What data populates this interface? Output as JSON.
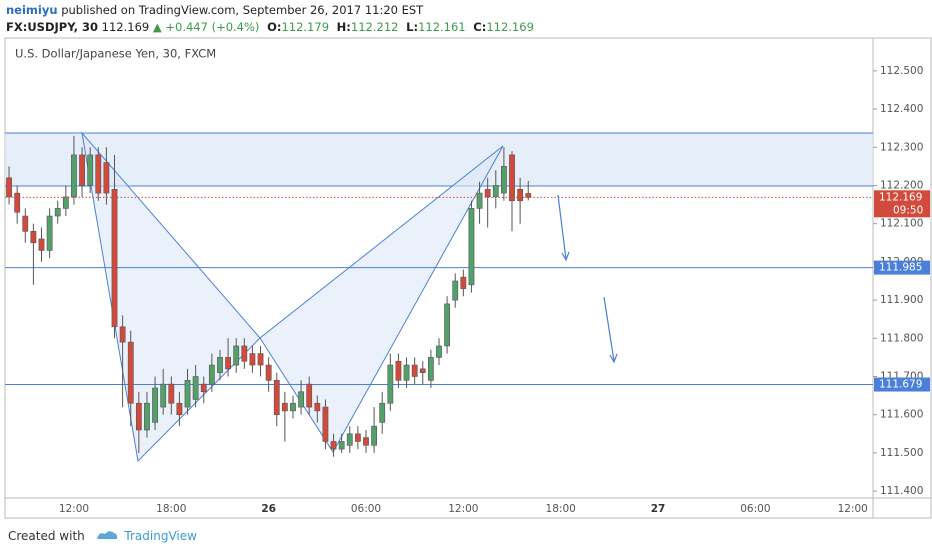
{
  "header": {
    "author": "neimiyu",
    "published": "published on TradingView.com, September 26, 2017 11:20 EST",
    "symbol": "FX:USDJPY, 30",
    "change": "+0.447 (+0.4%)",
    "ohlc_labels": [
      "O:",
      "H:",
      "L:",
      "C:"
    ]
  },
  "footer": {
    "created": "Created with",
    "brand": "TradingView"
  },
  "chart_data": {
    "type": "candlestick",
    "title": "U.S. Dollar/Japanese Yen, 30, FXCM",
    "categories": [
      null,
      null,
      null,
      null,
      null,
      null,
      null,
      null,
      "12:00",
      null,
      null,
      null,
      null,
      null,
      null,
      null,
      null,
      null,
      null,
      null,
      "18:00",
      null,
      null,
      null,
      null,
      null,
      null,
      null,
      null,
      null,
      null,
      null,
      "26",
      null,
      null,
      null,
      null,
      null,
      null,
      null,
      null,
      null,
      null,
      null,
      "06:00",
      null,
      null,
      null,
      null,
      null,
      null,
      null,
      null,
      null,
      null,
      null,
      "12:00",
      null,
      null,
      null,
      null,
      null,
      null,
      null,
      null,
      null,
      null,
      null,
      "18:00",
      null,
      null,
      null,
      null,
      null,
      null,
      null,
      null,
      null,
      null,
      null,
      "27",
      null,
      null,
      null,
      null,
      null,
      null,
      null,
      null,
      null,
      null,
      null,
      "06:00",
      null,
      null,
      null,
      null,
      null,
      null,
      null,
      null,
      null,
      null,
      null,
      "12:00",
      null,
      null
    ],
    "open": [
      112.22,
      112.18,
      112.12,
      112.08,
      112.06,
      112.03,
      112.12,
      112.14,
      112.17,
      112.28,
      112.2,
      112.28,
      112.26,
      112.19,
      111.83,
      111.79,
      111.63,
      111.56,
      111.58,
      111.62,
      111.68,
      111.63,
      111.62,
      111.64,
      111.68,
      111.68,
      111.71,
      111.75,
      111.73,
      111.78,
      111.76,
      111.76,
      111.73,
      111.69,
      111.63,
      111.61,
      111.62,
      111.68,
      111.63,
      111.62,
      111.53,
      111.51,
      111.52,
      111.55,
      111.54,
      111.52,
      111.58,
      111.63,
      111.74,
      111.69,
      111.73,
      111.72,
      111.69,
      111.75,
      111.78,
      111.9,
      111.96,
      111.94,
      112.14,
      112.19,
      112.17,
      112.18,
      112.28,
      112.19,
      112.179,
      null,
      null,
      null,
      null,
      null,
      null,
      null,
      null,
      null,
      null,
      null,
      null,
      null,
      null,
      null,
      null,
      null,
      null,
      null,
      null,
      null,
      null,
      null,
      null,
      null,
      null,
      null,
      null,
      null,
      null,
      null,
      null,
      null,
      null,
      null,
      null,
      null,
      null,
      null,
      null,
      null,
      null
    ],
    "high": [
      112.25,
      112.2,
      112.14,
      112.1,
      112.09,
      112.14,
      112.16,
      112.2,
      112.33,
      112.3,
      112.3,
      112.3,
      112.3,
      112.28,
      111.86,
      111.82,
      111.66,
      111.66,
      111.7,
      111.72,
      111.7,
      111.66,
      111.72,
      111.73,
      111.7,
      111.76,
      111.77,
      111.8,
      111.8,
      111.8,
      111.78,
      111.78,
      111.75,
      111.71,
      111.66,
      111.65,
      111.69,
      111.7,
      111.65,
      111.64,
      111.55,
      111.55,
      111.57,
      111.57,
      111.56,
      111.62,
      111.66,
      111.76,
      111.76,
      111.75,
      111.75,
      111.74,
      111.77,
      111.8,
      111.91,
      111.97,
      111.98,
      112.16,
      112.21,
      112.22,
      112.24,
      112.3,
      112.29,
      112.22,
      112.212,
      null,
      null,
      null,
      null,
      null,
      null,
      null,
      null,
      null,
      null,
      null,
      null,
      null,
      null,
      null,
      null,
      null,
      null,
      null,
      null,
      null,
      null,
      null,
      null,
      null,
      null,
      null,
      null,
      null,
      null,
      null,
      null,
      null,
      null,
      null,
      null,
      null,
      null,
      null,
      null,
      null,
      null
    ],
    "low": [
      112.15,
      112.1,
      112.05,
      111.94,
      112.0,
      112.01,
      112.1,
      112.12,
      112.15,
      112.17,
      112.18,
      112.16,
      112.15,
      111.8,
      111.62,
      111.57,
      111.5,
      111.54,
      111.56,
      111.6,
      111.6,
      111.57,
      111.6,
      111.62,
      111.63,
      111.66,
      111.69,
      111.7,
      111.71,
      111.72,
      111.71,
      111.7,
      111.66,
      111.57,
      111.53,
      111.59,
      111.6,
      111.6,
      111.58,
      111.51,
      111.49,
      111.5,
      111.5,
      111.51,
      111.5,
      111.5,
      111.55,
      111.61,
      111.67,
      111.67,
      111.68,
      111.68,
      111.67,
      111.73,
      111.76,
      111.88,
      111.91,
      111.92,
      112.1,
      112.09,
      112.14,
      112.16,
      112.08,
      112.1,
      112.161,
      null,
      null,
      null,
      null,
      null,
      null,
      null,
      null,
      null,
      null,
      null,
      null,
      null,
      null,
      null,
      null,
      null,
      null,
      null,
      null,
      null,
      null,
      null,
      null,
      null,
      null,
      null,
      null,
      null,
      null,
      null,
      null,
      null,
      null,
      null,
      null,
      null,
      null,
      null,
      null,
      null,
      null
    ],
    "close": [
      112.17,
      112.13,
      112.08,
      112.05,
      112.03,
      112.12,
      112.14,
      112.17,
      112.28,
      112.2,
      112.28,
      112.18,
      112.18,
      111.83,
      111.79,
      111.63,
      111.56,
      111.63,
      111.67,
      111.68,
      111.63,
      111.6,
      111.69,
      111.7,
      111.66,
      111.73,
      111.75,
      111.72,
      111.78,
      111.74,
      111.73,
      111.73,
      111.69,
      111.6,
      111.61,
      111.63,
      111.66,
      111.62,
      111.61,
      111.53,
      111.51,
      111.53,
      111.55,
      111.53,
      111.52,
      111.57,
      111.63,
      111.73,
      111.69,
      111.73,
      111.7,
      111.71,
      111.75,
      111.78,
      111.89,
      111.95,
      111.93,
      112.14,
      112.18,
      112.17,
      112.2,
      112.25,
      112.16,
      112.16,
      112.169,
      null,
      null,
      null,
      null,
      null,
      null,
      null,
      null,
      null,
      null,
      null,
      null,
      null,
      null,
      null,
      null,
      null,
      null,
      null,
      null,
      null,
      null,
      null,
      null,
      null,
      null,
      null,
      null,
      null,
      null,
      null,
      null,
      null,
      null,
      null,
      null,
      null,
      null,
      null,
      null,
      null,
      null
    ],
    "up_color": "#53a06a",
    "down_color": "#d24a3c",
    "ylim": [
      111.382,
      112.586
    ],
    "yticks": [
      {
        "value": 111.4,
        "label": "111.400"
      },
      {
        "value": 111.5,
        "label": "111.500"
      },
      {
        "value": 111.6,
        "label": "111.600"
      },
      {
        "value": 111.7,
        "label": "111.700"
      },
      {
        "value": 111.8,
        "label": "111.800"
      },
      {
        "value": 111.9,
        "label": "111.900"
      },
      {
        "value": 112.0,
        "label": "112.000"
      },
      {
        "value": 112.1,
        "label": "112.100"
      },
      {
        "value": 112.2,
        "label": "112.200"
      },
      {
        "value": 112.3,
        "label": "112.300"
      },
      {
        "value": 112.4,
        "label": "112.400"
      },
      {
        "value": 112.5,
        "label": "112.500"
      }
    ],
    "price_lines": [
      111.985,
      111.679
    ],
    "price_line_color": "#4a80d9",
    "countdown": "09:50"
  }
}
